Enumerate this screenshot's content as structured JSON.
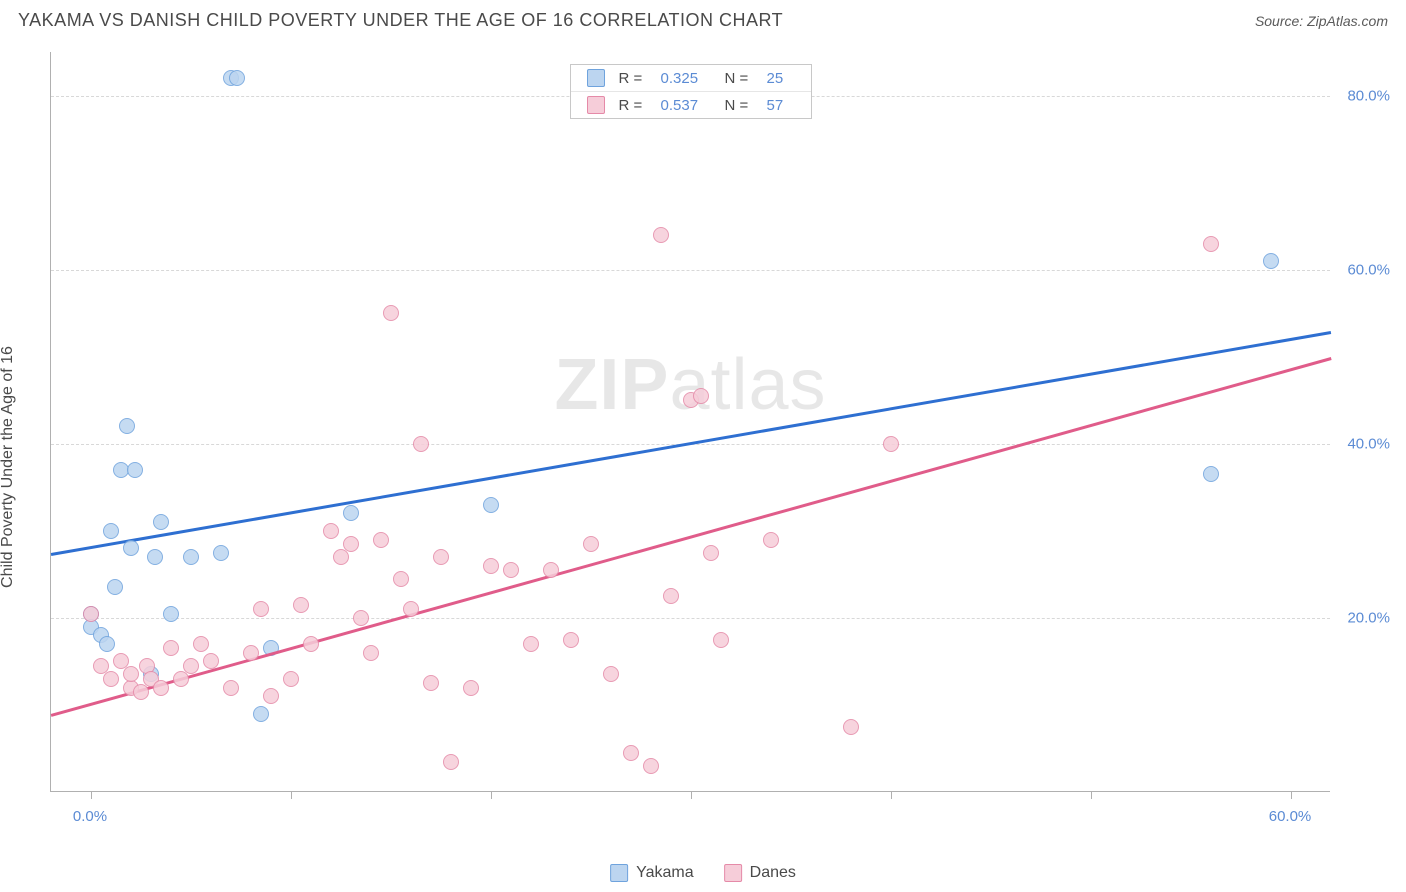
{
  "header": {
    "title": "YAKAMA VS DANISH CHILD POVERTY UNDER THE AGE OF 16 CORRELATION CHART",
    "source_prefix": "Source: ",
    "source_name": "ZipAtlas.com"
  },
  "ylabel": "Child Poverty Under the Age of 16",
  "watermark_bold": "ZIP",
  "watermark_rest": "atlas",
  "chart": {
    "type": "scatter",
    "background_color": "#ffffff",
    "grid_color": "#d8d8d8",
    "axis_color": "#b0b0b0",
    "tick_label_color": "#5b8bd4",
    "tick_fontsize": 15,
    "xlim": [
      -2,
      62
    ],
    "ylim": [
      0,
      85
    ],
    "yticks": [
      20,
      40,
      60,
      80
    ],
    "ytick_labels": [
      "20.0%",
      "40.0%",
      "60.0%",
      "80.0%"
    ],
    "xticks": [
      0,
      10,
      20,
      30,
      40,
      50,
      60
    ],
    "xtick_labels": [
      "0.0%",
      "",
      "",
      "",
      "",
      "",
      "60.0%"
    ],
    "marker_radius": 8,
    "marker_border_width": 1.5,
    "series": [
      {
        "name": "Yakama",
        "fill": "#bcd5f0",
        "stroke": "#6fa3dd",
        "r_value": "0.325",
        "n_value": "25",
        "trend": {
          "x1": -2,
          "y1": 27.5,
          "x2": 62,
          "y2": 53,
          "color": "#2e6fd1",
          "width": 2.5
        },
        "points": [
          [
            0,
            20.5
          ],
          [
            0,
            19
          ],
          [
            0.5,
            18
          ],
          [
            0.8,
            17
          ],
          [
            1,
            30
          ],
          [
            1.2,
            23.5
          ],
          [
            1.5,
            37
          ],
          [
            2.2,
            37
          ],
          [
            1.8,
            42
          ],
          [
            2,
            28
          ],
          [
            3,
            13.5
          ],
          [
            3.2,
            27
          ],
          [
            3.5,
            31
          ],
          [
            4,
            20.5
          ],
          [
            5,
            27
          ],
          [
            6.5,
            27.5
          ],
          [
            7,
            82
          ],
          [
            7.3,
            82
          ],
          [
            8.5,
            9
          ],
          [
            9,
            16.5
          ],
          [
            13,
            32
          ],
          [
            20,
            33
          ],
          [
            56,
            36.5
          ],
          [
            59,
            61
          ]
        ]
      },
      {
        "name": "Danes",
        "fill": "#f6cdd9",
        "stroke": "#e58aa8",
        "r_value": "0.537",
        "n_value": "57",
        "trend": {
          "x1": -2,
          "y1": 9,
          "x2": 62,
          "y2": 50,
          "color": "#e05c8a",
          "width": 2.5
        },
        "points": [
          [
            0,
            20.5
          ],
          [
            0.5,
            14.5
          ],
          [
            1,
            13
          ],
          [
            1.5,
            15
          ],
          [
            2,
            12
          ],
          [
            2,
            13.5
          ],
          [
            2.5,
            11.5
          ],
          [
            2.8,
            14.5
          ],
          [
            3,
            13
          ],
          [
            3.5,
            12
          ],
          [
            4,
            16.5
          ],
          [
            4.5,
            13
          ],
          [
            5,
            14.5
          ],
          [
            5.5,
            17
          ],
          [
            6,
            15
          ],
          [
            7,
            12
          ],
          [
            8,
            16
          ],
          [
            8.5,
            21
          ],
          [
            9,
            11
          ],
          [
            10,
            13
          ],
          [
            10.5,
            21.5
          ],
          [
            11,
            17
          ],
          [
            12,
            30
          ],
          [
            12.5,
            27
          ],
          [
            13,
            28.5
          ],
          [
            13.5,
            20
          ],
          [
            14,
            16
          ],
          [
            14.5,
            29
          ],
          [
            15,
            55
          ],
          [
            15.5,
            24.5
          ],
          [
            16,
            21
          ],
          [
            16.5,
            40
          ],
          [
            17,
            12.5
          ],
          [
            17.5,
            27
          ],
          [
            18,
            3.5
          ],
          [
            19,
            12
          ],
          [
            20,
            26
          ],
          [
            21,
            25.5
          ],
          [
            22,
            17
          ],
          [
            23,
            25.5
          ],
          [
            24,
            17.5
          ],
          [
            25,
            28.5
          ],
          [
            26,
            13.5
          ],
          [
            27,
            4.5
          ],
          [
            28,
            3
          ],
          [
            28.5,
            64
          ],
          [
            29,
            22.5
          ],
          [
            30,
            45
          ],
          [
            30.5,
            45.5
          ],
          [
            31,
            27.5
          ],
          [
            31.5,
            17.5
          ],
          [
            34,
            29
          ],
          [
            38,
            7.5
          ],
          [
            40,
            40
          ],
          [
            56,
            63
          ]
        ]
      }
    ]
  },
  "legend_top": {
    "r_label": "R =",
    "n_label": "N ="
  },
  "legend_bottom": {
    "items": [
      "Yakama",
      "Danes"
    ]
  }
}
